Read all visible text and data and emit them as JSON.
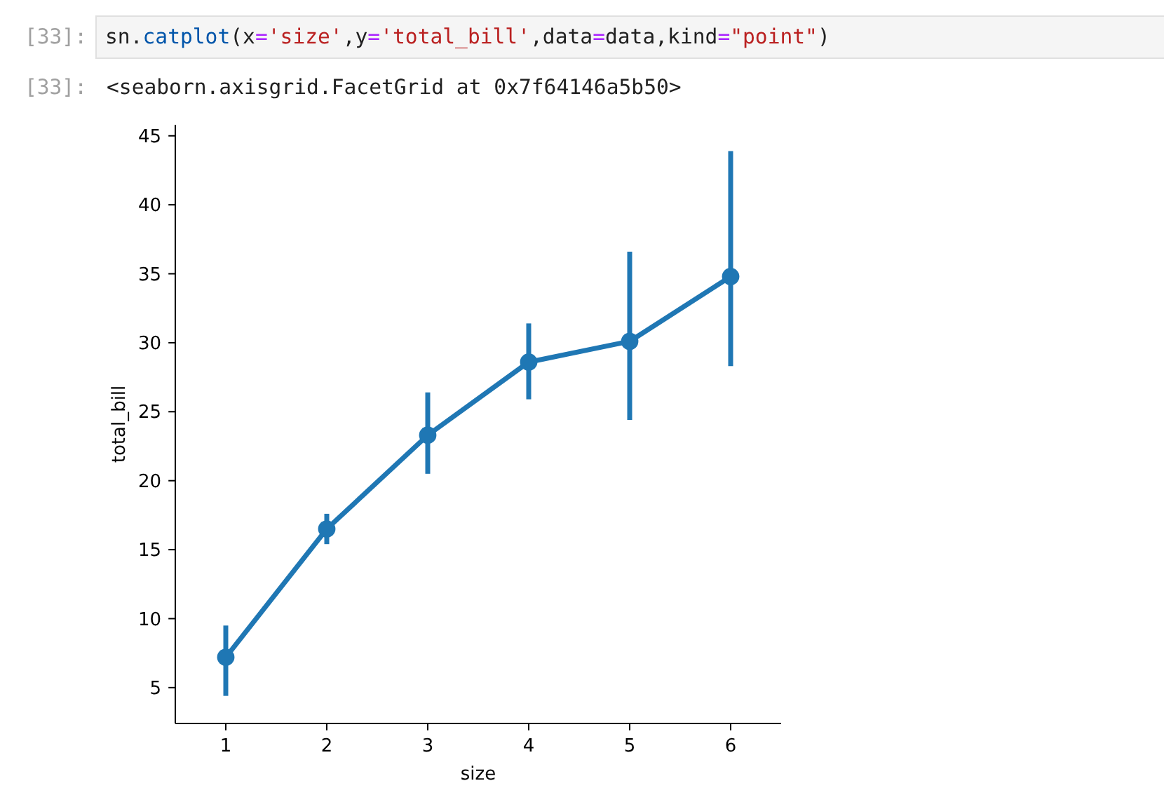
{
  "chart_data": {
    "type": "line",
    "xlabel": "size",
    "ylabel": "total_bill",
    "categories": [
      "1",
      "2",
      "3",
      "4",
      "5",
      "6"
    ],
    "values": [
      7.2,
      16.5,
      23.3,
      28.6,
      30.1,
      34.8
    ],
    "color": "#1f77b4",
    "errors": [
      [
        4.4,
        9.5
      ],
      [
        15.4,
        17.6
      ],
      [
        20.5,
        26.4
      ],
      [
        25.9,
        31.4
      ],
      [
        24.4,
        36.6
      ],
      [
        28.3,
        43.9
      ]
    ],
    "ylim": [
      2.4,
      45.8
    ],
    "yticks": [
      5,
      10,
      15,
      20,
      25,
      30,
      35,
      40,
      45
    ],
    "marker": "circle",
    "line_style": "solid",
    "annotations": [
      "[33]:",
      "sn.catplot(x='size',y='total_bill',data=data,kind=\"point\")",
      "[33]:",
      "<seaborn.axisgrid.FacetGrid at 0x7f64146a5b50>"
    ]
  }
}
